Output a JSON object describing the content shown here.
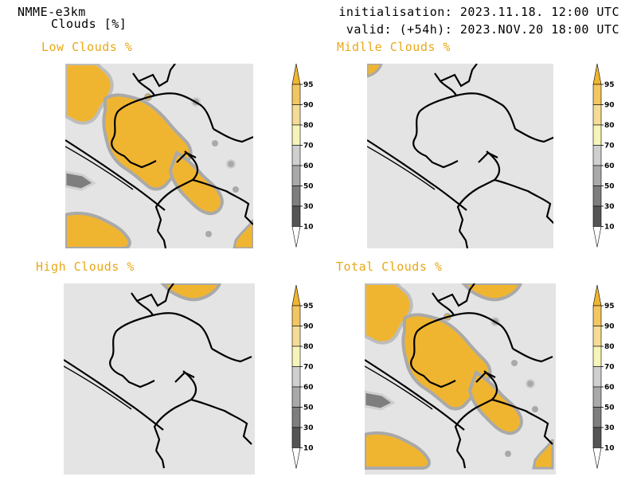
{
  "header": {
    "model": "NMME-e3km",
    "variable": "Clouds [%]",
    "initialisation": "initialisation: 2023.11.18. 12:00 UTC",
    "valid": "valid: (+54h): 2023.NOV.20 18:00 UTC"
  },
  "panels": {
    "low": {
      "title": "Low Clouds %"
    },
    "middle": {
      "title": "Midlle Clouds %"
    },
    "high": {
      "title": "High Clouds %"
    },
    "total": {
      "title": "Total Clouds %"
    }
  },
  "colorbar": {
    "levels": [
      "95",
      "90",
      "80",
      "70",
      "60",
      "50",
      "30",
      "10"
    ],
    "colors": [
      "#f0b530",
      "#f2c660",
      "#f5dc95",
      "#f6f4b8",
      "#cfcfcf",
      "#a9a9a9",
      "#7e7e7e",
      "#555555",
      "#ffffff"
    ]
  },
  "colors": {
    "title_accent": "#e8a818",
    "background_field": "#e4e4e4",
    "cloud_dense": "#f0b530"
  }
}
